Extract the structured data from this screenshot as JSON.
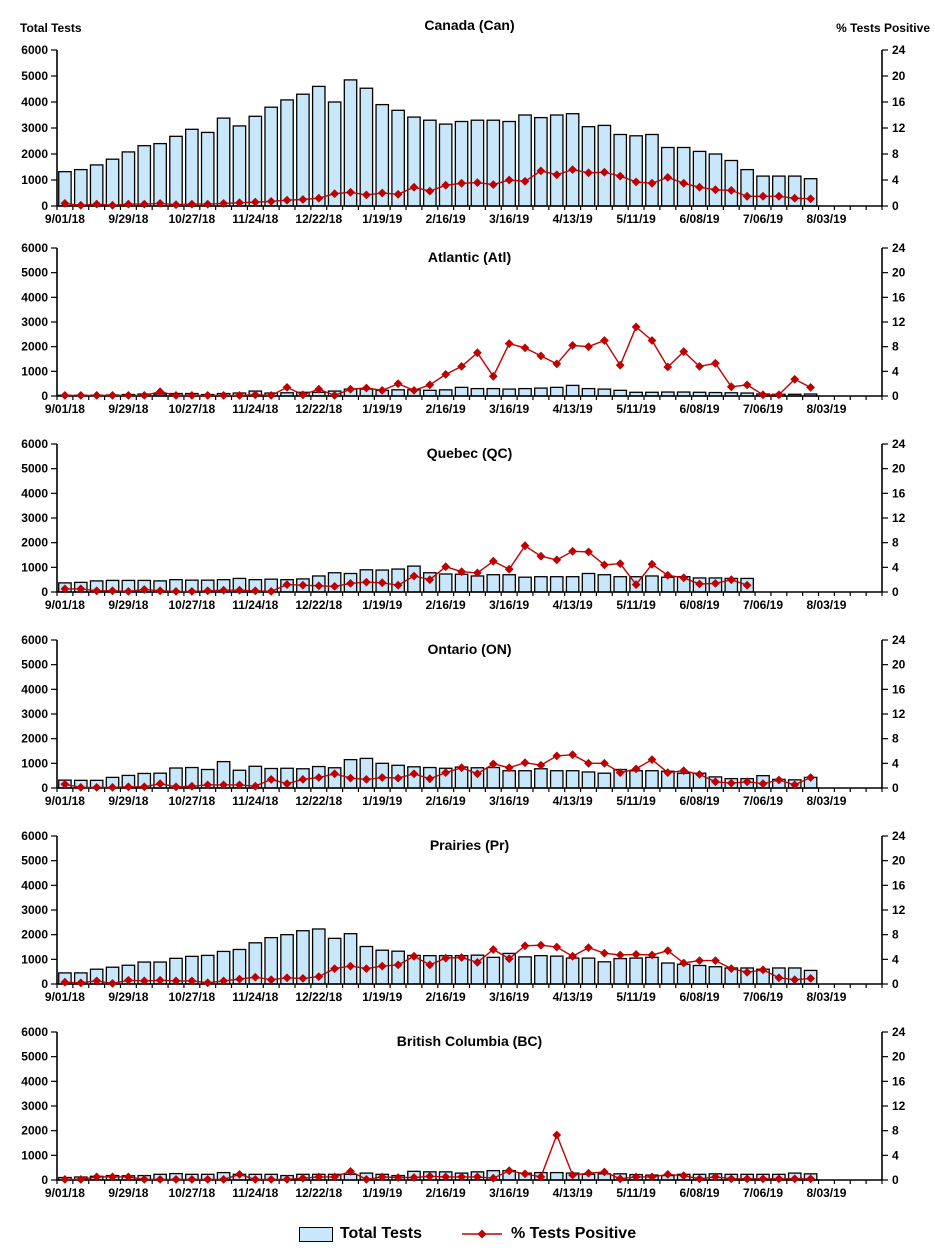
{
  "page": {
    "background": "#ffffff"
  },
  "colors": {
    "bar_fill": "#C9E7FB",
    "bar_stroke": "#000000",
    "line": "#C00000",
    "marker": "#C00000",
    "text": "#000000"
  },
  "legend": {
    "total_tests_label": "Total Tests",
    "pct_positive_label": "% Tests Positive"
  },
  "chart_data": {
    "type": "bar+line-combo",
    "layout": {
      "grid": false,
      "legend_position": "bottom-center",
      "weekly_categories": true
    },
    "categories": [
      "9/01/18",
      "9/08/18",
      "9/15/18",
      "9/22/18",
      "9/29/18",
      "10/06/18",
      "10/13/18",
      "10/20/18",
      "10/27/18",
      "11/03/18",
      "11/10/18",
      "11/17/18",
      "11/24/18",
      "12/01/18",
      "12/08/18",
      "12/15/18",
      "12/22/18",
      "12/29/18",
      "1/05/19",
      "1/12/19",
      "1/19/19",
      "1/26/19",
      "2/02/19",
      "2/09/19",
      "2/16/19",
      "2/23/19",
      "3/02/19",
      "3/09/19",
      "3/16/19",
      "3/23/19",
      "3/30/19",
      "4/06/19",
      "4/13/19",
      "4/20/19",
      "4/27/19",
      "5/04/19",
      "5/11/19",
      "5/18/19",
      "5/25/19",
      "6/01/19",
      "6/08/19",
      "6/15/19",
      "6/22/19",
      "6/29/19",
      "7/06/19",
      "7/13/19",
      "7/20/19",
      "7/27/19",
      "8/03/19"
    ],
    "x_tick_indices": [
      0,
      4,
      8,
      12,
      16,
      20,
      24,
      28,
      32,
      36,
      40,
      44,
      48
    ],
    "x_tick_labels": [
      "9/01/18",
      "9/29/18",
      "10/27/18",
      "11/24/18",
      "12/22/18",
      "1/19/19",
      "2/16/19",
      "3/16/19",
      "4/13/19",
      "5/11/19",
      "6/08/19",
      "7/06/19",
      "8/03/19"
    ],
    "extra_empty_slots": 3,
    "left_axis": {
      "title": "Total Tests",
      "min": 0,
      "max": 6000,
      "step": 1000,
      "ticks": [
        0,
        1000,
        2000,
        3000,
        4000,
        5000,
        6000
      ]
    },
    "right_axis": {
      "title": "% Tests Positive",
      "min": 0,
      "max": 24,
      "step": 4,
      "ticks": [
        0,
        4,
        8,
        12,
        16,
        20,
        24
      ]
    },
    "legend": [
      "Total Tests",
      "% Tests Positive"
    ],
    "charts": [
      {
        "title": "Canada (Can)",
        "total_tests": [
          1320,
          1400,
          1580,
          1800,
          2080,
          2320,
          2400,
          2680,
          2950,
          2830,
          3380,
          3080,
          3450,
          3800,
          4080,
          4300,
          4600,
          4000,
          4850,
          4530,
          3900,
          3680,
          3420,
          3300,
          3150,
          3250,
          3300,
          3300,
          3250,
          3500,
          3400,
          3500,
          3550,
          3050,
          3100,
          2750,
          2700,
          2750,
          2250,
          2250,
          2100,
          2000,
          1750,
          1400,
          1150,
          1150,
          1150,
          1050,
          null
        ],
        "pct_positive": [
          0.4,
          0.1,
          0.3,
          0.1,
          0.3,
          0.3,
          0.4,
          0.2,
          0.3,
          0.3,
          0.4,
          0.5,
          0.6,
          0.7,
          0.9,
          1.0,
          1.2,
          1.9,
          2.1,
          1.7,
          2.0,
          1.8,
          2.9,
          2.3,
          3.2,
          3.5,
          3.6,
          3.3,
          4.0,
          3.8,
          5.4,
          4.8,
          5.6,
          5.1,
          5.2,
          4.6,
          3.7,
          3.5,
          4.4,
          3.5,
          2.9,
          2.5,
          2.4,
          1.5,
          1.5,
          1.5,
          1.2,
          1.1,
          null
        ]
      },
      {
        "title": "Atlantic (Atl)",
        "total_tests": [
          30,
          30,
          30,
          40,
          60,
          80,
          80,
          100,
          100,
          60,
          100,
          120,
          200,
          120,
          130,
          150,
          150,
          200,
          280,
          280,
          230,
          250,
          250,
          230,
          250,
          350,
          300,
          300,
          280,
          300,
          320,
          350,
          430,
          300,
          280,
          230,
          150,
          150,
          160,
          160,
          150,
          140,
          130,
          120,
          80,
          70,
          70,
          80,
          null
        ],
        "pct_positive": [
          0.1,
          0.1,
          0.1,
          0.1,
          0.1,
          0.1,
          0.7,
          0.1,
          0.1,
          0.1,
          0.1,
          0.1,
          0.2,
          0.1,
          1.4,
          0.2,
          1.1,
          0.1,
          1.1,
          1.3,
          0.9,
          2.0,
          0.9,
          1.8,
          3.5,
          4.8,
          7.0,
          3.2,
          8.5,
          7.8,
          6.5,
          5.2,
          8.2,
          8.0,
          9.0,
          5.0,
          11.2,
          9.0,
          4.7,
          7.2,
          4.8,
          5.3,
          1.5,
          1.8,
          0.2,
          0.2,
          2.7,
          1.4,
          null
        ]
      },
      {
        "title": "Quebec (QC)",
        "total_tests": [
          370,
          390,
          450,
          470,
          470,
          470,
          450,
          500,
          480,
          480,
          500,
          550,
          500,
          520,
          500,
          530,
          650,
          780,
          750,
          900,
          890,
          930,
          1050,
          780,
          730,
          720,
          650,
          700,
          700,
          600,
          620,
          620,
          620,
          750,
          700,
          620,
          620,
          650,
          600,
          620,
          570,
          570,
          550,
          550,
          null,
          null,
          null,
          null,
          null
        ],
        "pct_positive": [
          0.5,
          0.5,
          0.2,
          0.2,
          0.1,
          0.4,
          0.2,
          0.1,
          0.1,
          0.2,
          0.3,
          0.3,
          0.2,
          0.1,
          1.2,
          1.1,
          1.0,
          0.9,
          1.4,
          1.6,
          1.5,
          1.1,
          2.6,
          2.0,
          4.1,
          3.3,
          3.1,
          5.0,
          3.7,
          7.5,
          5.8,
          5.2,
          6.6,
          6.5,
          4.4,
          4.6,
          1.2,
          4.5,
          2.7,
          2.3,
          1.3,
          1.4,
          2.0,
          1.1,
          null,
          null,
          null,
          null,
          null
        ]
      },
      {
        "title": "Ontario (ON)",
        "total_tests": [
          320,
          310,
          310,
          430,
          510,
          590,
          600,
          810,
          830,
          750,
          1070,
          720,
          880,
          790,
          800,
          780,
          870,
          820,
          1150,
          1200,
          1000,
          920,
          860,
          830,
          800,
          850,
          820,
          830,
          700,
          700,
          780,
          700,
          700,
          650,
          600,
          750,
          700,
          700,
          680,
          600,
          600,
          450,
          380,
          380,
          500,
          350,
          330,
          430,
          null
        ],
        "pct_positive": [
          0.6,
          0.1,
          0.1,
          0.1,
          0.2,
          0.2,
          0.7,
          0.2,
          0.3,
          0.5,
          0.5,
          0.5,
          0.3,
          1.4,
          0.7,
          1.4,
          1.7,
          2.3,
          1.6,
          1.4,
          1.7,
          1.6,
          2.3,
          1.5,
          2.5,
          3.3,
          2.3,
          3.9,
          3.3,
          4.1,
          3.7,
          5.2,
          5.4,
          4.0,
          4.0,
          2.5,
          3.1,
          4.6,
          2.5,
          2.8,
          2.2,
          1.0,
          0.8,
          1.0,
          0.7,
          1.3,
          0.5,
          1.7,
          null
        ]
      },
      {
        "title": "Prairies (Pr)",
        "total_tests": [
          450,
          450,
          600,
          680,
          760,
          890,
          890,
          1040,
          1120,
          1160,
          1320,
          1400,
          1670,
          1880,
          2000,
          2160,
          2230,
          1850,
          2040,
          1520,
          1370,
          1330,
          1160,
          1150,
          1150,
          1150,
          1170,
          1080,
          1240,
          1100,
          1150,
          1130,
          1050,
          1050,
          900,
          1030,
          1050,
          1080,
          850,
          800,
          750,
          700,
          650,
          650,
          600,
          650,
          650,
          550,
          null
        ],
        "pct_positive": [
          0.3,
          0.2,
          0.5,
          0.1,
          0.6,
          0.5,
          0.6,
          0.5,
          0.5,
          0.2,
          0.5,
          0.8,
          1.1,
          0.7,
          1.0,
          0.9,
          1.2,
          2.5,
          2.9,
          2.5,
          2.9,
          3.1,
          4.5,
          3.1,
          4.2,
          4.3,
          3.5,
          5.6,
          4.1,
          6.2,
          6.3,
          6.0,
          4.5,
          5.9,
          5.0,
          4.7,
          4.8,
          4.7,
          5.4,
          3.4,
          3.8,
          3.8,
          2.5,
          1.9,
          2.3,
          1.0,
          0.7,
          0.9,
          null
        ]
      },
      {
        "title": "British Columbia (BC)",
        "total_tests": [
          100,
          120,
          150,
          180,
          170,
          180,
          230,
          260,
          230,
          230,
          300,
          230,
          230,
          230,
          180,
          230,
          230,
          230,
          230,
          280,
          230,
          180,
          350,
          330,
          330,
          280,
          330,
          380,
          380,
          280,
          300,
          300,
          280,
          230,
          250,
          250,
          220,
          200,
          180,
          230,
          230,
          250,
          230,
          230,
          230,
          230,
          280,
          250,
          null
        ],
        "pct_positive": [
          0.1,
          0.1,
          0.5,
          0.5,
          0.5,
          0.1,
          0.1,
          0.1,
          0.1,
          0.1,
          0.1,
          0.9,
          0.1,
          0.1,
          0.1,
          0.3,
          0.5,
          0.5,
          1.4,
          0.1,
          0.5,
          0.4,
          0.4,
          0.6,
          0.5,
          0.5,
          0.5,
          0.3,
          1.5,
          1.0,
          0.5,
          7.3,
          0.8,
          1.1,
          1.3,
          0.2,
          0.5,
          0.5,
          0.9,
          0.7,
          0.2,
          0.5,
          0.2,
          0.2,
          0.2,
          0.2,
          0.2,
          0.2,
          null
        ]
      }
    ]
  }
}
